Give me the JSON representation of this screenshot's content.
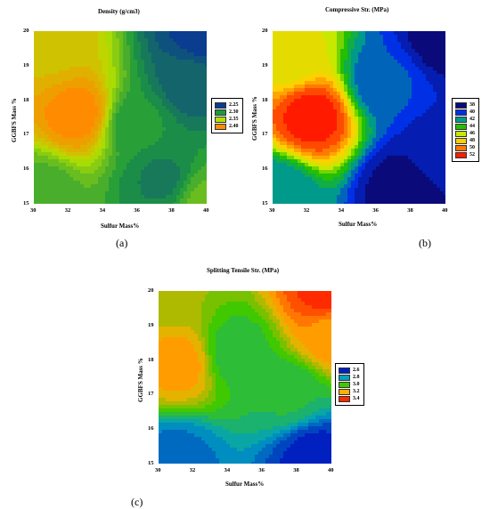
{
  "chart_data": [
    {
      "type": "heatmap",
      "title": "Density (g/cm3)",
      "xlabel": "Sulfur Mass%",
      "ylabel": "GGBFS Mass %",
      "x_ticks": [
        "30",
        "32",
        "34",
        "36",
        "38",
        "40"
      ],
      "y_ticks": [
        "15",
        "16",
        "17",
        "18",
        "19",
        "20"
      ],
      "xlim": [
        30,
        40
      ],
      "ylim": [
        15,
        20
      ],
      "legend_labels": [
        "2.25",
        "2.30",
        "2.35",
        "2.40"
      ],
      "legend_colors": [
        "#0a3d8f",
        "#1e9a3c",
        "#b4e000",
        "#ff8c00"
      ],
      "legend_position": "right",
      "hotspots": [
        {
          "x": 32.5,
          "y": 17.6,
          "value": 2.43
        },
        {
          "x": 31.0,
          "y": 19.5,
          "value": 2.39
        },
        {
          "x": 30.5,
          "y": 15.3,
          "value": 2.31
        },
        {
          "x": 39.8,
          "y": 19.9,
          "value": 2.22
        },
        {
          "x": 39.0,
          "y": 18.5,
          "value": 2.25
        },
        {
          "x": 37.5,
          "y": 15.7,
          "value": 2.27
        },
        {
          "x": 39.8,
          "y": 15.1,
          "value": 2.32
        },
        {
          "x": 36.0,
          "y": 17.3,
          "value": 2.29
        }
      ],
      "caption": "(a)"
    },
    {
      "type": "heatmap",
      "title": "Compressive Str. (MPa)",
      "xlabel": "Sulfur Mass%",
      "ylabel": "GGBFS Mass %",
      "x_ticks": [
        "30",
        "32",
        "34",
        "36",
        "38",
        "40"
      ],
      "y_ticks": [
        "15",
        "16",
        "17",
        "18",
        "19",
        "20"
      ],
      "xlim": [
        30,
        40
      ],
      "ylim": [
        15,
        20
      ],
      "legend_labels": [
        "38",
        "40",
        "42",
        "44",
        "46",
        "48",
        "50",
        "52"
      ],
      "legend_colors": [
        "#0a0a7a",
        "#0030e6",
        "#009a8a",
        "#22c000",
        "#c8e800",
        "#ffd000",
        "#ff7a00",
        "#ff1a00"
      ],
      "legend_position": "right",
      "hotspots": [
        {
          "x": 32.3,
          "y": 17.5,
          "value": 53
        },
        {
          "x": 31.0,
          "y": 19.3,
          "value": 47
        },
        {
          "x": 30.3,
          "y": 15.3,
          "value": 41
        },
        {
          "x": 37.5,
          "y": 15.5,
          "value": 37
        },
        {
          "x": 39.8,
          "y": 19.8,
          "value": 37
        },
        {
          "x": 36.5,
          "y": 18.5,
          "value": 40
        },
        {
          "x": 39.5,
          "y": 16.5,
          "value": 38
        }
      ],
      "caption": "(b)"
    },
    {
      "type": "heatmap",
      "title": "Splitting Tensile Str. (MPa)",
      "xlabel": "Sulfur Mass%",
      "ylabel": "GGBFS Mass %",
      "x_ticks": [
        "30",
        "32",
        "34",
        "36",
        "38",
        "40"
      ],
      "y_ticks": [
        "15",
        "16",
        "17",
        "18",
        "19",
        "20"
      ],
      "xlim": [
        30,
        40
      ],
      "ylim": [
        15,
        20
      ],
      "legend_labels": [
        "2.6",
        "2.8",
        "3.0",
        "3.2",
        "3.4"
      ],
      "legend_colors": [
        "#0020c0",
        "#00a0c0",
        "#40c800",
        "#ffb000",
        "#ff2a00"
      ],
      "legend_position": "right",
      "hotspots": [
        {
          "x": 31.2,
          "y": 17.9,
          "value": 3.28
        },
        {
          "x": 34.5,
          "y": 18.2,
          "value": 2.92
        },
        {
          "x": 39.8,
          "y": 19.9,
          "value": 3.5
        },
        {
          "x": 40.0,
          "y": 18.8,
          "value": 3.3
        },
        {
          "x": 39.0,
          "y": 15.2,
          "value": 2.5
        },
        {
          "x": 31.0,
          "y": 15.1,
          "value": 2.65
        },
        {
          "x": 37.5,
          "y": 17.0,
          "value": 2.9
        },
        {
          "x": 30.3,
          "y": 20.0,
          "value": 3.12
        }
      ],
      "caption": "(c)"
    }
  ]
}
